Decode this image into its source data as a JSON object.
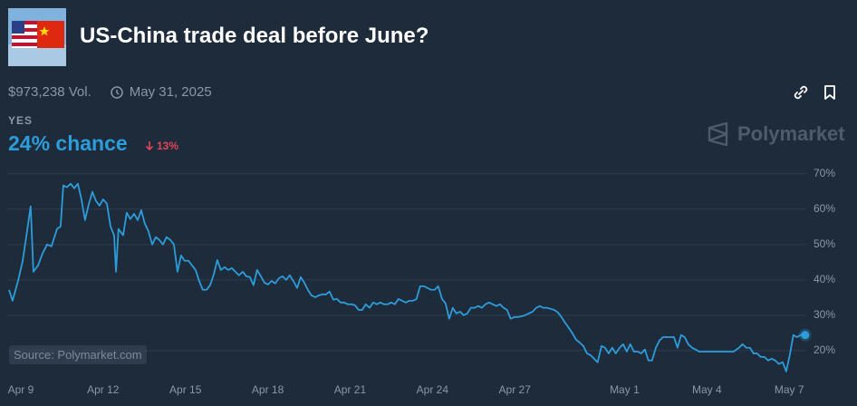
{
  "header": {
    "title": "US-China trade deal before June?",
    "volume": "$973,238 Vol.",
    "end_date": "May 31, 2025",
    "outcome": "YES",
    "chance": "24% chance",
    "change": "13%",
    "brand": "Polymarket",
    "source": "Source: Polymarket.com"
  },
  "chart_data": {
    "type": "line",
    "color": "#2d9cdb",
    "grid": true,
    "xlim": [
      -0.46,
      28.72
    ],
    "xticks": [
      {
        "value": 0,
        "label": "Apr 9"
      },
      {
        "value": 3,
        "label": "Apr 12"
      },
      {
        "value": 6,
        "label": "Apr 15"
      },
      {
        "value": 9,
        "label": "Apr 18"
      },
      {
        "value": 12,
        "label": "Apr 21"
      },
      {
        "value": 15,
        "label": "Apr 24"
      },
      {
        "value": 18,
        "label": "Apr 27"
      },
      {
        "value": 22,
        "label": "May 1"
      },
      {
        "value": 25,
        "label": "May 4"
      },
      {
        "value": 28,
        "label": "May 7"
      }
    ],
    "ylim": [
      11.5,
      72
    ],
    "yticks": [
      {
        "value": 20,
        "label": "20%"
      },
      {
        "value": 30,
        "label": "30%"
      },
      {
        "value": 40,
        "label": "40%"
      },
      {
        "value": 50,
        "label": "50%"
      },
      {
        "value": 60,
        "label": "60%"
      },
      {
        "value": 70,
        "label": "70%"
      }
    ],
    "x": [
      -0.43,
      -0.3,
      -0.1,
      0.07,
      0.23,
      0.36,
      0.46,
      0.63,
      0.79,
      0.96,
      1.12,
      1.32,
      1.45,
      1.55,
      1.68,
      1.82,
      1.95,
      2.08,
      2.21,
      2.34,
      2.48,
      2.61,
      2.74,
      2.87,
      3.0,
      3.14,
      3.27,
      3.4,
      3.47,
      3.56,
      3.73,
      3.86,
      3.99,
      4.13,
      4.26,
      4.39,
      4.52,
      4.65,
      4.79,
      4.92,
      5.05,
      5.18,
      5.31,
      5.45,
      5.58,
      5.71,
      5.84,
      5.97,
      6.11,
      6.24,
      6.37,
      6.5,
      6.63,
      6.77,
      6.9,
      7.03,
      7.16,
      7.29,
      7.43,
      7.56,
      7.69,
      7.82,
      7.95,
      8.09,
      8.22,
      8.35,
      8.48,
      8.61,
      8.75,
      8.88,
      9.01,
      9.14,
      9.27,
      9.41,
      9.54,
      9.67,
      9.8,
      9.93,
      10.07,
      10.2,
      10.33,
      10.46,
      10.59,
      10.73,
      10.86,
      10.99,
      11.12,
      11.25,
      11.39,
      11.52,
      11.65,
      11.78,
      11.91,
      12.05,
      12.18,
      12.31,
      12.44,
      12.57,
      12.71,
      12.84,
      12.97,
      13.1,
      13.23,
      13.37,
      13.5,
      13.63,
      13.76,
      13.89,
      14.03,
      14.16,
      14.29,
      14.42,
      14.55,
      14.69,
      14.82,
      14.95,
      15.08,
      15.21,
      15.35,
      15.48,
      15.61,
      15.74,
      15.87,
      16.01,
      16.14,
      16.27,
      16.4,
      16.53,
      16.67,
      16.8,
      16.93,
      17.06,
      17.19,
      17.33,
      17.46,
      17.59,
      17.72,
      17.85,
      17.99,
      18.12,
      18.25,
      18.38,
      18.51,
      18.65,
      18.78,
      18.91,
      19.04,
      19.17,
      19.31,
      19.44,
      19.57,
      19.7,
      19.83,
      19.97,
      20.1,
      20.23,
      20.36,
      20.5,
      20.63,
      20.76,
      20.89,
      21.02,
      21.16,
      21.29,
      21.42,
      21.55,
      21.68,
      21.82,
      21.95,
      22.08,
      22.21,
      22.34,
      22.48,
      22.61,
      22.74,
      22.87,
      23.0,
      23.14,
      23.27,
      23.4,
      23.53,
      23.66,
      23.8,
      23.93,
      24.06,
      24.19,
      24.32,
      24.46,
      24.59,
      24.72,
      24.85,
      24.98,
      25.64,
      25.97,
      26.17,
      26.3,
      26.44,
      26.57,
      26.7,
      26.83,
      26.96,
      27.1,
      27.23,
      27.36,
      27.49,
      27.62,
      27.76,
      27.89,
      28.02,
      28.15,
      28.28,
      28.42,
      28.58
    ],
    "values": [
      37.2,
      34.1,
      39.7,
      45.4,
      53.8,
      60.8,
      42.3,
      44.1,
      47.4,
      50.0,
      49.5,
      54.4,
      55.1,
      66.7,
      66.2,
      67.2,
      65.9,
      67.2,
      62.8,
      56.9,
      61.5,
      64.9,
      62.3,
      61.0,
      62.8,
      61.5,
      55.1,
      52.6,
      42.3,
      54.4,
      52.6,
      59.0,
      57.2,
      58.7,
      56.9,
      59.7,
      55.9,
      53.8,
      50.0,
      52.1,
      51.3,
      50.0,
      52.1,
      51.3,
      50.0,
      42.3,
      46.9,
      45.4,
      45.4,
      44.1,
      42.8,
      39.7,
      37.2,
      37.2,
      38.5,
      41.5,
      45.6,
      42.8,
      43.6,
      42.8,
      43.3,
      42.3,
      41.3,
      42.3,
      41.0,
      40.8,
      38.5,
      42.8,
      41.0,
      39.2,
      38.7,
      39.7,
      39.0,
      40.5,
      41.0,
      40.0,
      41.3,
      39.7,
      37.7,
      40.8,
      39.2,
      37.2,
      35.6,
      35.1,
      35.6,
      35.9,
      35.9,
      36.7,
      34.4,
      34.6,
      33.6,
      33.6,
      33.1,
      33.1,
      32.8,
      31.5,
      31.5,
      33.1,
      32.1,
      33.6,
      33.1,
      33.6,
      33.1,
      33.1,
      33.6,
      33.1,
      34.6,
      34.1,
      33.6,
      34.1,
      34.1,
      34.6,
      38.2,
      38.2,
      37.7,
      37.2,
      37.2,
      38.2,
      34.6,
      33.3,
      29.0,
      32.1,
      30.5,
      31.0,
      30.0,
      30.5,
      32.1,
      32.1,
      32.6,
      32.1,
      33.1,
      33.6,
      33.1,
      32.6,
      33.1,
      32.1,
      31.5,
      29.0,
      29.5,
      29.5,
      29.7,
      30.0,
      30.5,
      31.0,
      32.1,
      32.6,
      32.1,
      32.1,
      31.8,
      31.5,
      30.8,
      29.5,
      27.9,
      26.4,
      24.9,
      23.1,
      22.3,
      21.3,
      19.2,
      18.7,
      17.7,
      16.7,
      21.3,
      20.8,
      19.2,
      20.8,
      19.2,
      20.8,
      21.8,
      19.7,
      21.8,
      19.7,
      19.7,
      19.2,
      20.3,
      17.2,
      17.2,
      20.8,
      22.8,
      23.8,
      23.8,
      23.8,
      23.8,
      20.8,
      24.4,
      23.8,
      21.8,
      20.8,
      20.3,
      19.7,
      19.7,
      19.7,
      19.7,
      19.7,
      20.8,
      21.8,
      20.8,
      20.8,
      19.2,
      19.2,
      18.2,
      18.2,
      17.2,
      17.7,
      17.2,
      16.2,
      16.7,
      14.1,
      18.7,
      24.4,
      23.8,
      24.4,
      24.4
    ]
  }
}
